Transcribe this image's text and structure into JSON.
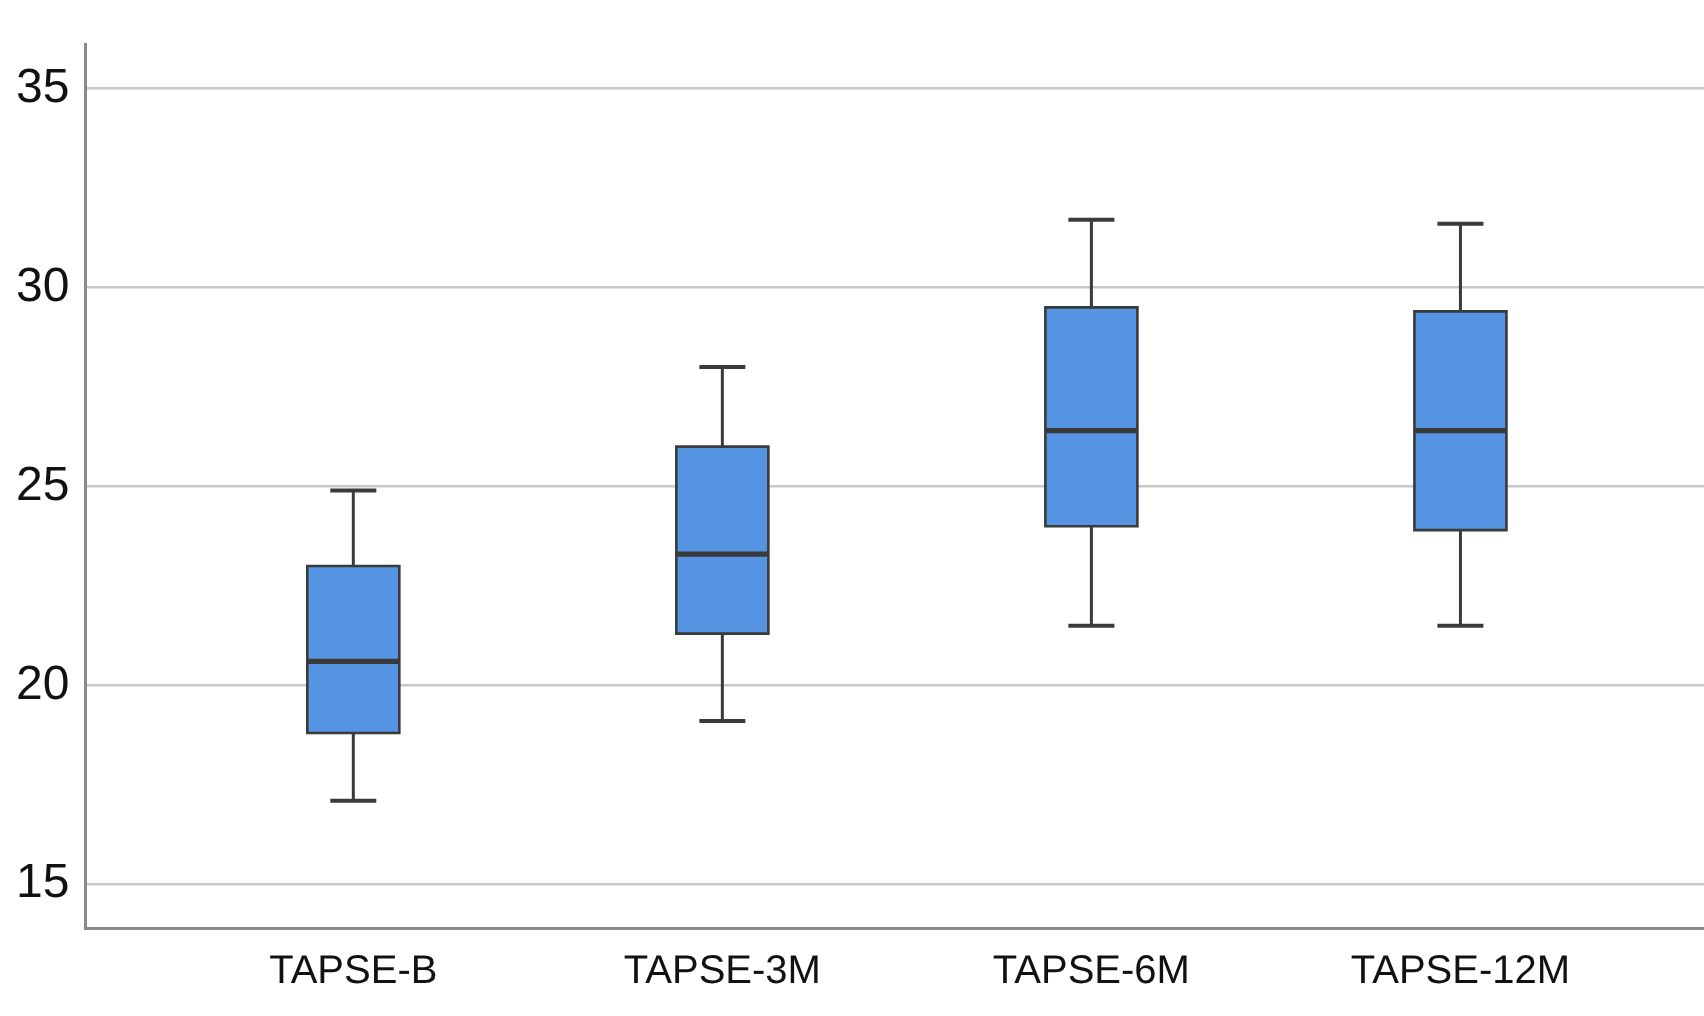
{
  "chart_data": {
    "type": "box",
    "categories": [
      "TAPSE-B",
      "TAPSE-3M",
      "TAPSE-6M",
      "TAPSE-12M"
    ],
    "color": "#5594e2",
    "boxes": [
      {
        "low": 17.1,
        "q1": 18.8,
        "median": 20.6,
        "q3": 23.0,
        "high": 24.9
      },
      {
        "low": 19.1,
        "q1": 21.3,
        "median": 23.3,
        "q3": 26.0,
        "high": 28.0
      },
      {
        "low": 21.5,
        "q1": 24.0,
        "median": 26.4,
        "q3": 29.5,
        "high": 31.7
      },
      {
        "low": 21.5,
        "q1": 23.9,
        "median": 26.4,
        "q3": 29.4,
        "high": 31.6
      }
    ],
    "ylim": [
      13.9,
      36.1
    ],
    "yticks": [
      15,
      20,
      25,
      30,
      35
    ],
    "grid": "y"
  }
}
